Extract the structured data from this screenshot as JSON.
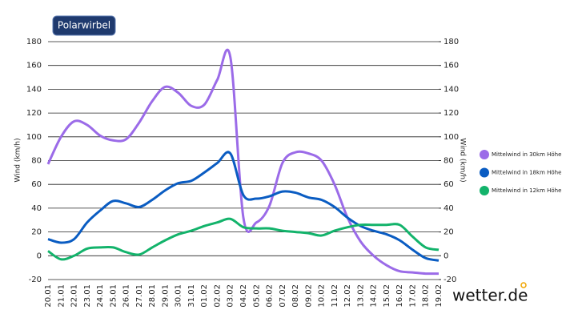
{
  "chart_data": {
    "type": "line",
    "title": "Polarwirbel",
    "categories": [
      "20.01",
      "21.01",
      "22.01",
      "23.01",
      "24.01",
      "25.01",
      "26.01",
      "27.01",
      "28.01",
      "29.01",
      "30.01",
      "31.01",
      "01.02",
      "02.02",
      "03.02",
      "04.02",
      "05.02",
      "06.02",
      "07.02",
      "08.02",
      "09.02",
      "10.02",
      "11.02",
      "12.02",
      "13.02",
      "14.02",
      "15.02",
      "16.02",
      "17.02",
      "18.02",
      "19.02"
    ],
    "series": [
      {
        "name": "Mittelwind in 30km Höhe",
        "color": "#9b6be8",
        "values": [
          77,
          100,
          113,
          110,
          101,
          97,
          98,
          112,
          130,
          142,
          137,
          126,
          127,
          148,
          167,
          32,
          28,
          42,
          78,
          87,
          86,
          80,
          60,
          32,
          12,
          0,
          -8,
          -13,
          -14,
          -15,
          -15
        ]
      },
      {
        "name": "Mittelwind in 18km Höhe",
        "color": "#0a5cc2",
        "values": [
          14,
          11,
          14,
          28,
          38,
          46,
          44,
          41,
          47,
          55,
          61,
          63,
          70,
          78,
          86,
          51,
          48,
          50,
          54,
          53,
          49,
          47,
          41,
          32,
          25,
          21,
          18,
          13,
          5,
          -2,
          -4
        ]
      },
      {
        "name": "Mittelwind in 12km Höhe",
        "color": "#13b36b",
        "values": [
          4,
          -3,
          0,
          6,
          7,
          7,
          3,
          1,
          7,
          13,
          18,
          21,
          25,
          28,
          31,
          24,
          23,
          23,
          21,
          20,
          19,
          17,
          21,
          24,
          26,
          26,
          26,
          26,
          16,
          7,
          5
        ]
      }
    ],
    "ylabel": "Wind (km/h)",
    "y2label": "Wind (km/h)",
    "ylim": [
      -20,
      180
    ],
    "yticks": [
      -20,
      0,
      20,
      40,
      60,
      80,
      100,
      120,
      140,
      160,
      180
    ],
    "y2lim": [
      -20,
      180
    ],
    "y2ticks": [
      -20,
      0,
      20,
      40,
      60,
      80,
      100,
      120,
      140,
      160,
      180
    ],
    "grid": true,
    "legend": "right",
    "logo": "wetter.de"
  }
}
